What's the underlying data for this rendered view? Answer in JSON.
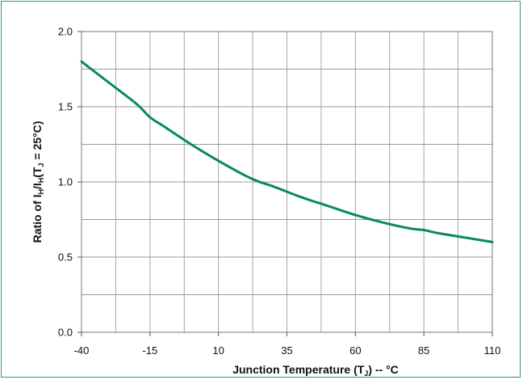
{
  "chart_data": {
    "type": "line",
    "title": "",
    "xlabel": "Junction Temperature (T",
    "xlabel_sub": "J",
    "xlabel_suffix": ") -- °C",
    "ylabel_parts": {
      "p1": "Ratio of I",
      "p1_sub": "H",
      "p2": "/I",
      "p2_sub": "H",
      "p3": "(T",
      "p3_sub": "J",
      "p4": " = 25°C)"
    },
    "xlim": [
      -40,
      110
    ],
    "ylim": [
      0.0,
      2.0
    ],
    "x_ticks": [
      -40,
      -15,
      10,
      35,
      60,
      85,
      110
    ],
    "y_ticks": [
      0.0,
      0.5,
      1.0,
      1.5,
      2.0
    ],
    "y_tick_labels": [
      "0.0",
      "0.5",
      "1.0",
      "1.5",
      "2.0"
    ],
    "x_minor_grid": [
      -27.5,
      -2.5,
      22.5,
      47.5,
      72.5,
      97.5
    ],
    "y_minor_grid": [
      0.25,
      0.75,
      1.25,
      1.75
    ],
    "grid": true,
    "line_color": "#0a8a55",
    "grid_color": "#9a9a9a",
    "series": [
      {
        "x": [
          -40,
          -30,
          -20,
          -15,
          -10,
          0,
          10,
          20,
          25,
          30,
          40,
          50,
          60,
          70,
          80,
          85,
          90,
          100,
          110
        ],
        "y": [
          1.8,
          1.66,
          1.52,
          1.43,
          1.37,
          1.25,
          1.14,
          1.04,
          1.0,
          0.97,
          0.9,
          0.84,
          0.78,
          0.73,
          0.69,
          0.68,
          0.66,
          0.63,
          0.6
        ]
      }
    ]
  }
}
